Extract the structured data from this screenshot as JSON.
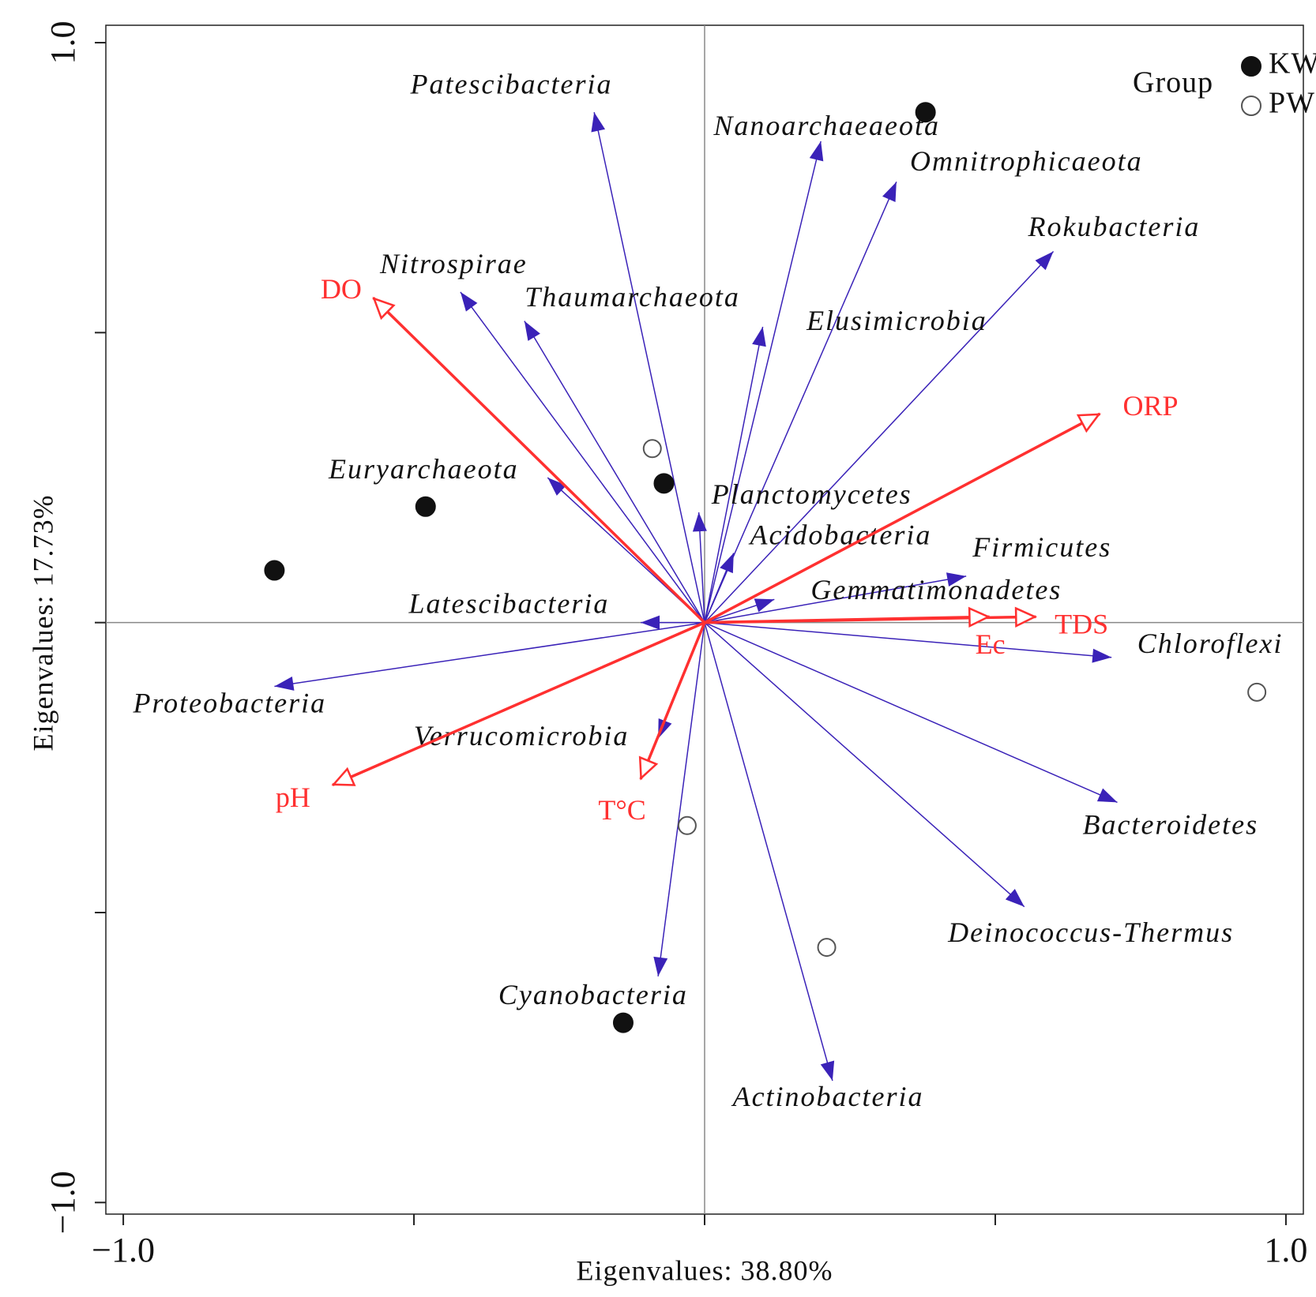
{
  "chart_data": {
    "type": "biplot",
    "xlabel": "Eigenvalues: 38.80%",
    "ylabel": "Eigenvalues: 17.73%",
    "xlim": [
      -1.03,
      1.03
    ],
    "ylim": [
      -1.02,
      1.03
    ],
    "xticks": [
      {
        "value": -1.0,
        "label": "−1.0"
      },
      {
        "value": -0.5,
        "label": null
      },
      {
        "value": 0,
        "label": null
      },
      {
        "value": 0.5,
        "label": null
      },
      {
        "value": 1.0,
        "label": "1.0"
      }
    ],
    "yticks": [
      {
        "value": -1.0,
        "label": "−1.0"
      },
      {
        "value": -0.5,
        "label": null
      },
      {
        "value": 0,
        "label": null
      },
      {
        "value": 0.5,
        "label": null
      },
      {
        "value": 1.0,
        "label": "1.0"
      }
    ],
    "zero_lines": true,
    "species": {
      "color": "#3a22b8",
      "names": [
        "Patescibacteria",
        "Nanoarchaeaeota",
        "Omnitrophicaeota",
        "Rokubacteria",
        "Nitrospirae",
        "Thaumarchaeota",
        "Elusimicrobia",
        "Euryarchaeota",
        "Planctomycetes",
        "Acidobacteria",
        "Firmicutes",
        "Gemmatimonadetes",
        "Latescibacteria",
        "Chloroflexi",
        "Proteobacteria",
        "Verrucomicrobia",
        "Bacteroidetes",
        "Deinococcus-Thermus",
        "Cyanobacteria",
        "Actinobacteria"
      ],
      "x": [
        -0.19,
        0.2,
        0.33,
        0.6,
        -0.42,
        -0.31,
        0.1,
        -0.27,
        -0.01,
        0.05,
        0.45,
        0.12,
        -0.11,
        0.7,
        -0.74,
        -0.08,
        0.71,
        0.55,
        -0.08,
        0.22
      ],
      "y": [
        0.88,
        0.83,
        0.76,
        0.64,
        0.57,
        0.52,
        0.51,
        0.25,
        0.19,
        0.12,
        0.08,
        0.04,
        0.0,
        -0.06,
        -0.11,
        -0.2,
        -0.31,
        -0.49,
        -0.61,
        -0.79
      ]
    },
    "variables": {
      "color": "#ff3030",
      "names": [
        "DO",
        "ORP",
        "TDS",
        "Ec",
        "pH",
        "T°C"
      ],
      "x": [
        -0.57,
        0.68,
        0.57,
        0.49,
        -0.64,
        -0.11
      ],
      "y": [
        0.56,
        0.36,
        0.01,
        0.01,
        -0.28,
        -0.27
      ]
    },
    "legend": {
      "title": "Group",
      "position": "upper right"
    },
    "series": [
      {
        "name": "KW",
        "marker": "filled",
        "color": "#111111",
        "x": [
          0.38,
          -0.07,
          -0.48,
          -0.74,
          -0.14
        ],
        "y": [
          0.88,
          0.24,
          0.2,
          0.09,
          -0.69
        ]
      },
      {
        "name": "PW",
        "marker": "open",
        "color": "#555555",
        "x": [
          -0.09,
          -0.03,
          0.21,
          0.95
        ],
        "y": [
          0.3,
          -0.35,
          -0.56,
          -0.12
        ]
      }
    ]
  }
}
